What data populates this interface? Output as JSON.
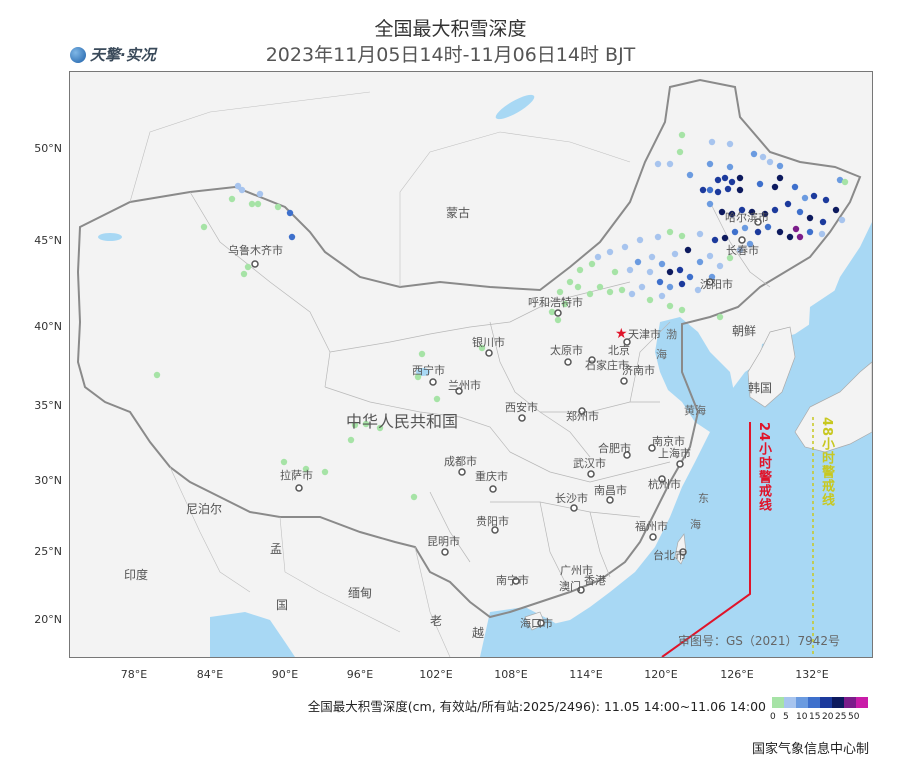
{
  "header": {
    "title": "全国最大积雪深度",
    "subtitle": "2023年11月05日14时-11月06日14时 BJT",
    "logo_text": "天擎·实况"
  },
  "map": {
    "lat_labels": [
      "50°N",
      "45°N",
      "40°N",
      "35°N",
      "30°N",
      "25°N",
      "20°N"
    ],
    "lon_labels": [
      "78°E",
      "84°E",
      "90°E",
      "96°E",
      "102°E",
      "108°E",
      "114°E",
      "120°E",
      "126°E",
      "132°E"
    ],
    "country_labels": {
      "china": "中华人民共和国",
      "mongolia": "蒙古",
      "nepal": "尼泊尔",
      "india": "印度",
      "bangladesh": "孟",
      "myanmar": "缅甸",
      "laos": "老",
      "vietnam": "越",
      "korea_dprk": "朝鲜",
      "korea_rok": "韩国",
      "thailand": "国"
    },
    "sea_labels": {
      "bohai": "渤",
      "bohai2": "海",
      "yellow_sea": "黄海",
      "east_sea1": "东",
      "east_sea2": "海"
    },
    "cities": [
      {
        "name": "乌鲁木齐市",
        "key": "urumqi"
      },
      {
        "name": "哈尔滨市",
        "key": "harbin"
      },
      {
        "name": "长春市",
        "key": "changchun"
      },
      {
        "name": "沈阳市",
        "key": "shenyang"
      },
      {
        "name": "呼和浩特市",
        "key": "hohhot"
      },
      {
        "name": "北京",
        "key": "beijing"
      },
      {
        "name": "天津市",
        "key": "tianjin"
      },
      {
        "name": "银川市",
        "key": "yinchuan"
      },
      {
        "name": "太原市",
        "key": "taiyuan"
      },
      {
        "name": "石家庄市",
        "key": "shijiazhuang"
      },
      {
        "name": "济南市",
        "key": "jinan"
      },
      {
        "name": "西宁市",
        "key": "xining"
      },
      {
        "name": "兰州市",
        "key": "lanzhou"
      },
      {
        "name": "西安市",
        "key": "xian"
      },
      {
        "name": "郑州市",
        "key": "zhengzhou"
      },
      {
        "name": "南京市",
        "key": "nanjing"
      },
      {
        "name": "合肥市",
        "key": "hefei"
      },
      {
        "name": "上海市",
        "key": "shanghai"
      },
      {
        "name": "成都市",
        "key": "chengdu"
      },
      {
        "name": "武汉市",
        "key": "wuhan"
      },
      {
        "name": "杭州市",
        "key": "hangzhou"
      },
      {
        "name": "拉萨市",
        "key": "lhasa"
      },
      {
        "name": "重庆市",
        "key": "chongqing"
      },
      {
        "name": "长沙市",
        "key": "changsha"
      },
      {
        "name": "南昌市",
        "key": "nanchang"
      },
      {
        "name": "贵阳市",
        "key": "guiyang"
      },
      {
        "name": "福州市",
        "key": "fuzhou"
      },
      {
        "name": "昆明市",
        "key": "kunming"
      },
      {
        "name": "台北市",
        "key": "taipei"
      },
      {
        "name": "广州市",
        "key": "guangzhou"
      },
      {
        "name": "南宁市",
        "key": "nanning"
      },
      {
        "name": "澳门",
        "key": "macau"
      },
      {
        "name": "香港",
        "key": "hongkong"
      },
      {
        "name": "海口市",
        "key": "haikou"
      }
    ],
    "warning_line_24h": "24小时警戒线",
    "warning_line_48h": "48小时警戒线",
    "approval_number": "审图号：GS（2021）7942号",
    "colors": {
      "sea": "#a8d8f4",
      "land": "#f3f3f3",
      "warning_24h": "#e0142a",
      "warning_48h": "#c8c820"
    }
  },
  "legend": {
    "description": "全国最大积雪深度(cm, 有效站/所有站:2025/2496): 11.05 14:00~11.06 14:00",
    "ticks": [
      "0",
      "5",
      "10",
      "15",
      "20",
      "25",
      "50"
    ],
    "colors": [
      "#a6e3a6",
      "#a7c4ee",
      "#6b9be0",
      "#3e70cc",
      "#1c3a9c",
      "#0d1a5e",
      "#7b1c8a",
      "#c91ca8"
    ]
  },
  "footer": {
    "agency": "国家气象信息中心制"
  }
}
